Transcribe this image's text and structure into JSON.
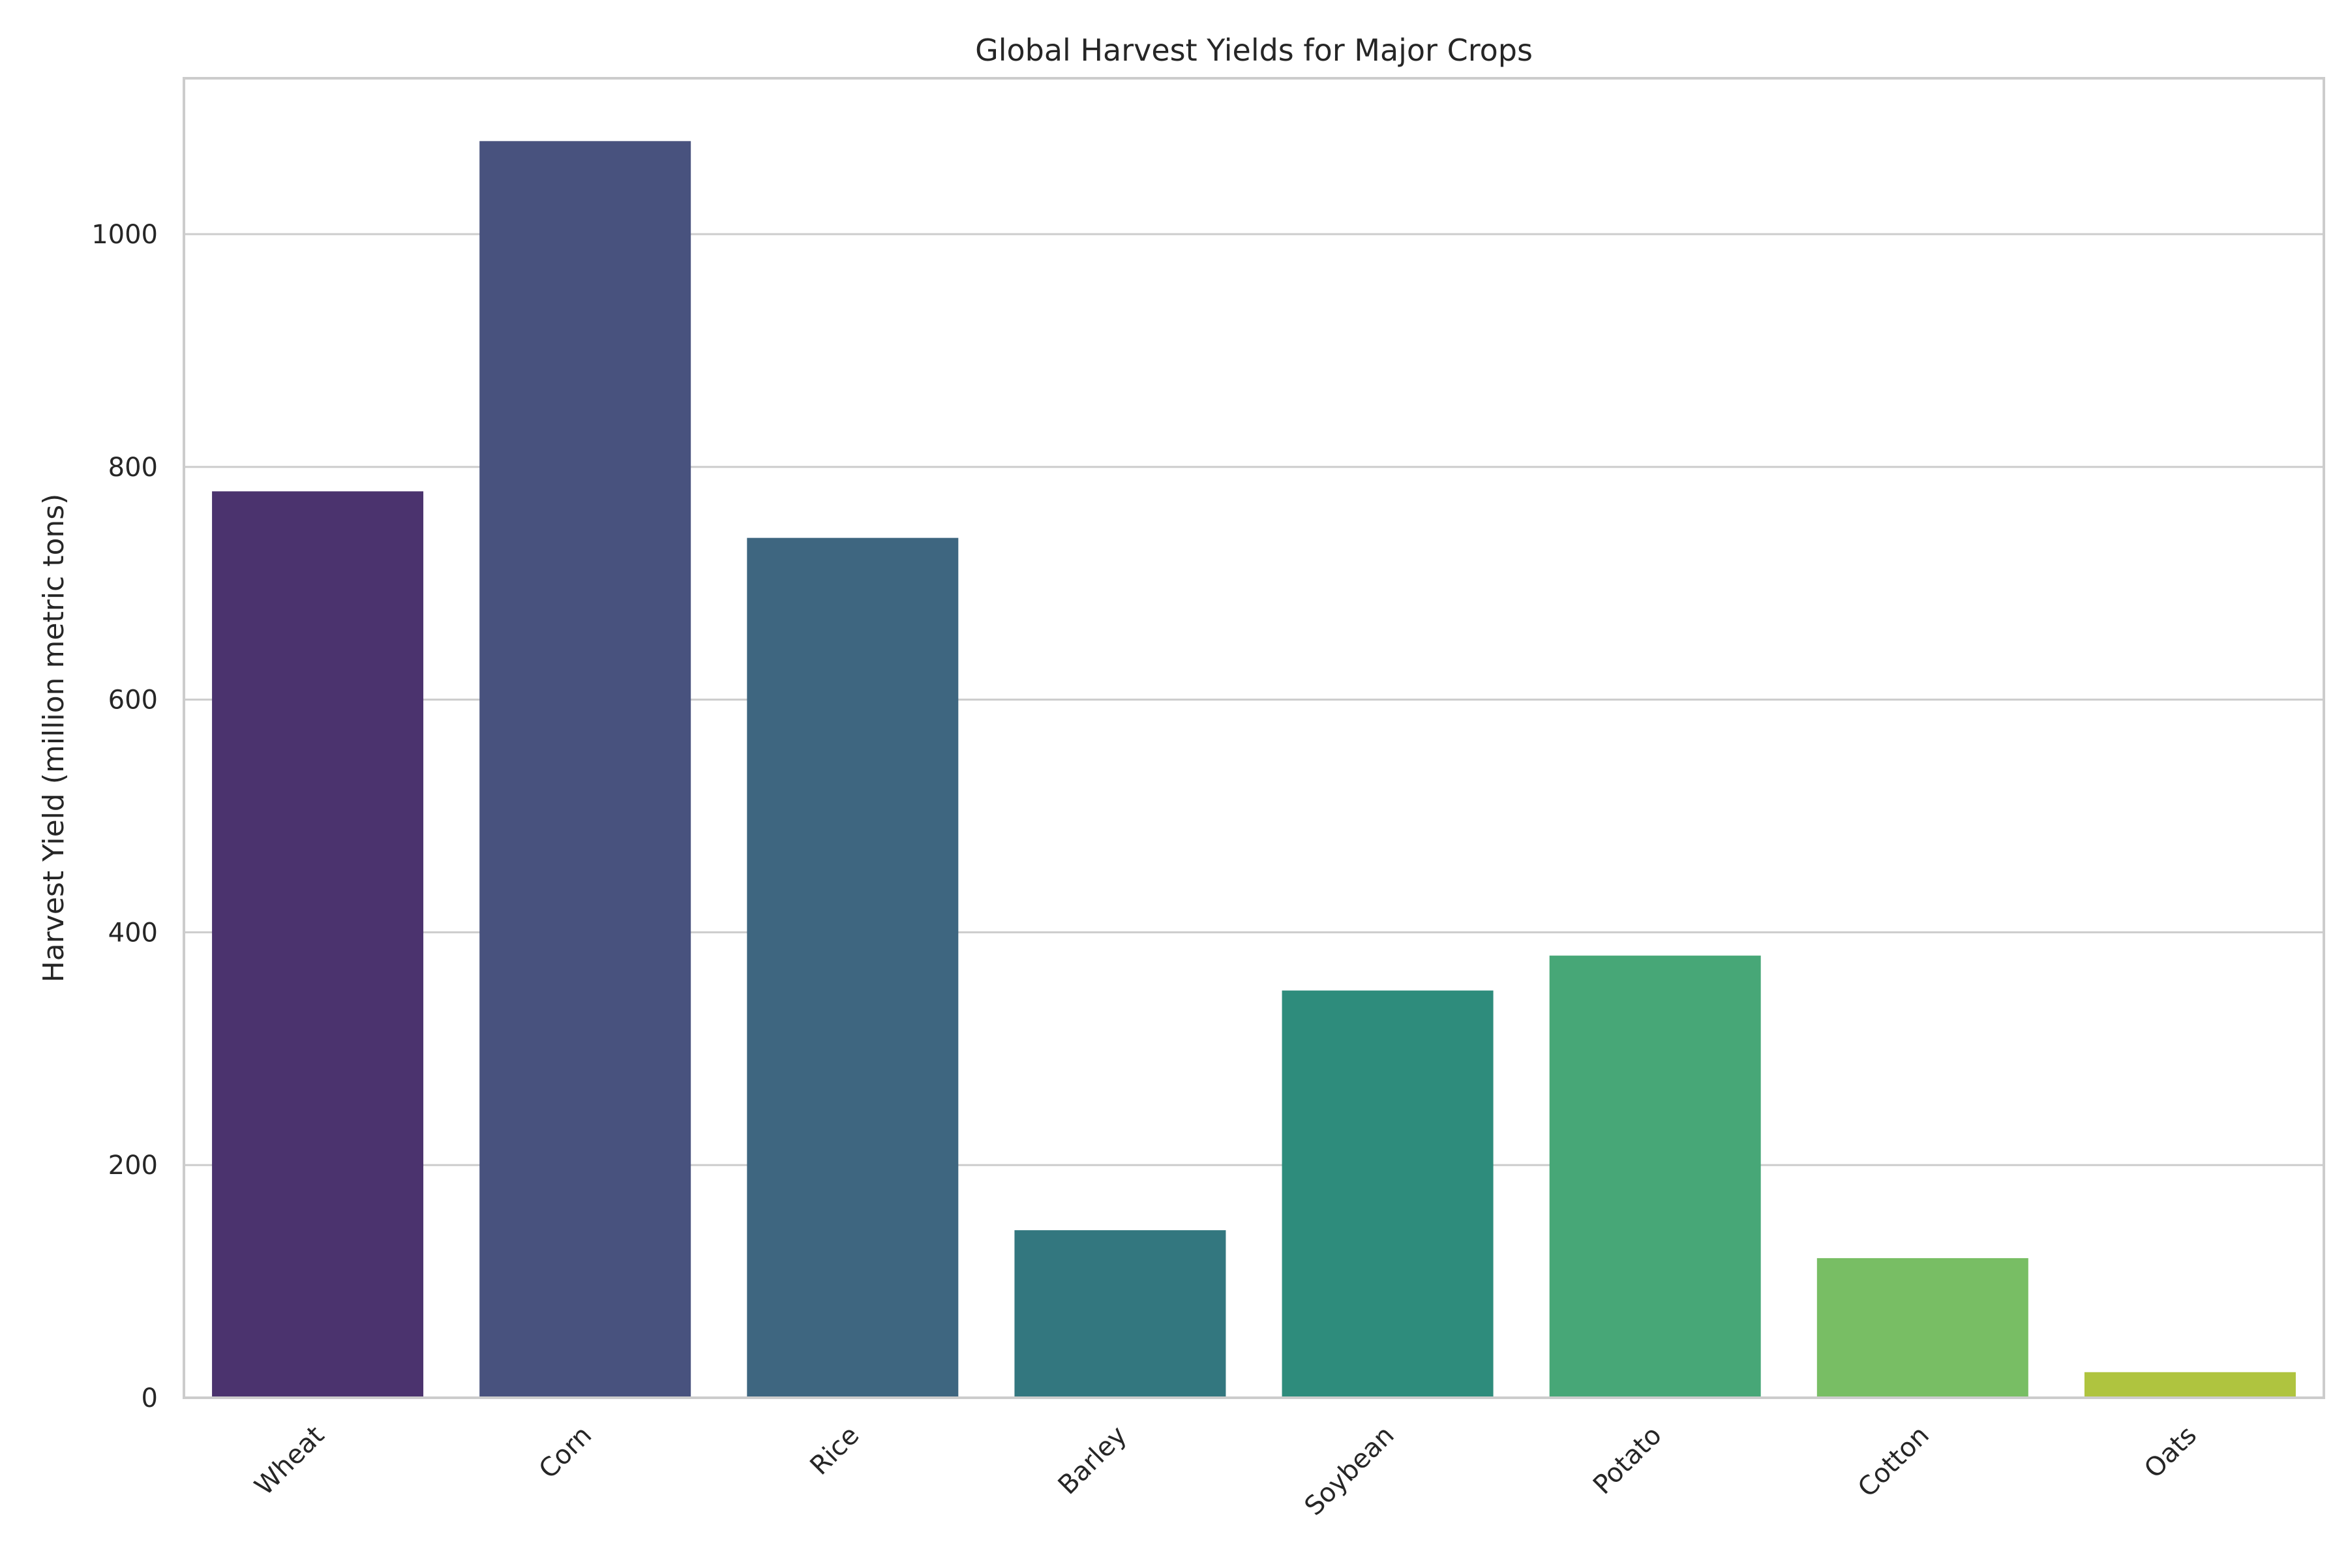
{
  "chart_data": {
    "type": "bar",
    "title": "Global Harvest Yields for Major Crops",
    "xlabel": "",
    "ylabel": "Harvest Yield (million metric tons)",
    "categories": [
      "Wheat",
      "Corn",
      "Rice",
      "Barley",
      "Soybean",
      "Potato",
      "Cotton",
      "Oats"
    ],
    "values": [
      779,
      1080,
      739,
      144,
      350,
      380,
      120,
      22
    ],
    "colors": [
      "#4b336e",
      "#48527e",
      "#3e6680",
      "#33777f",
      "#2e8c7c",
      "#47a777",
      "#78be64",
      "#afc43f"
    ],
    "ylim": [
      0,
      1134
    ],
    "yticks": [
      0,
      200,
      400,
      600,
      800,
      1000
    ],
    "grid": "horizontal"
  }
}
